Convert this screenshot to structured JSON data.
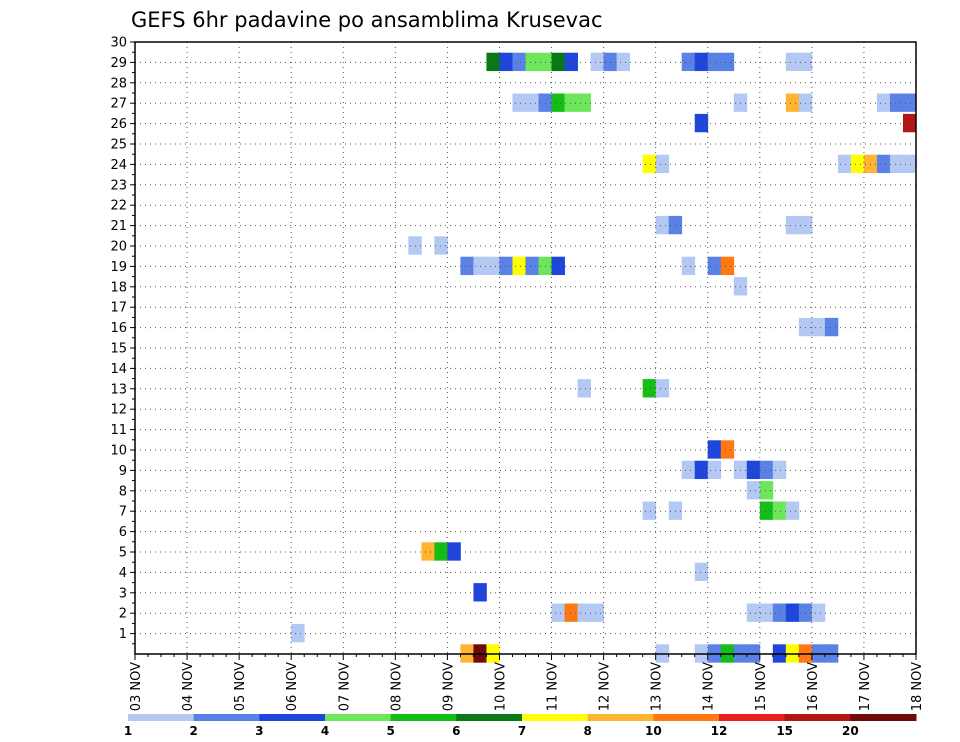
{
  "chart_data": {
    "type": "heatmap",
    "title": "GEFS 6hr padavine po ansamblima Krusevac",
    "x_tick_labels": [
      "03 NOV",
      "04 NOV",
      "05 NOV",
      "06 NOV",
      "07 NOV",
      "08 NOV",
      "09 NOV",
      "10 NOV",
      "11 NOV",
      "12 NOV",
      "13 NOV",
      "14 NOV",
      "15 NOV",
      "16 NOV",
      "17 NOV",
      "18 NOV"
    ],
    "y_tick_labels": [
      "1",
      "2",
      "3",
      "4",
      "5",
      "6",
      "7",
      "8",
      "9",
      "10",
      "11",
      "12",
      "13",
      "14",
      "15",
      "16",
      "17",
      "18",
      "19",
      "20",
      "21",
      "22",
      "23",
      "24",
      "25",
      "26",
      "27",
      "28",
      "29",
      "30"
    ],
    "xlim_days": [
      0,
      15
    ],
    "ylim": [
      0,
      30
    ],
    "grid": true,
    "legend": {
      "position": "bottom",
      "labels": [
        "1",
        "2",
        "3",
        "4",
        "5",
        "6",
        "7",
        "8",
        "10",
        "12",
        "15",
        "20"
      ],
      "colors": [
        "#b4c8f4",
        "#5a82e6",
        "#1e46dc",
        "#6ee65a",
        "#14be14",
        "#0a7814",
        "#ffff00",
        "#ffb432",
        "#ff7814",
        "#e61e1e",
        "#b41414",
        "#6e0a0a"
      ]
    },
    "cells_note": "each cell: [day_offset_from_03_NOV, member, color_level_index]",
    "cells": [
      [
        6.75,
        29,
        5
      ],
      [
        7.0,
        29,
        2
      ],
      [
        7.25,
        29,
        1
      ],
      [
        7.5,
        29,
        3
      ],
      [
        7.75,
        29,
        3
      ],
      [
        8.0,
        29,
        5
      ],
      [
        8.25,
        29,
        2
      ],
      [
        8.75,
        29,
        0
      ],
      [
        9.0,
        29,
        1
      ],
      [
        9.25,
        29,
        0
      ],
      [
        10.5,
        29,
        1
      ],
      [
        10.75,
        29,
        2
      ],
      [
        11.0,
        29,
        1
      ],
      [
        11.25,
        29,
        1
      ],
      [
        12.5,
        29,
        0
      ],
      [
        12.75,
        29,
        0
      ],
      [
        7.25,
        27,
        0
      ],
      [
        7.5,
        27,
        0
      ],
      [
        7.75,
        27,
        1
      ],
      [
        8.0,
        27,
        4
      ],
      [
        8.25,
        27,
        3
      ],
      [
        8.5,
        27,
        3
      ],
      [
        11.5,
        27,
        0
      ],
      [
        12.5,
        27,
        7
      ],
      [
        12.75,
        27,
        0
      ],
      [
        14.25,
        27,
        0
      ],
      [
        14.5,
        27,
        1
      ],
      [
        14.75,
        27,
        1
      ],
      [
        10.75,
        26,
        2
      ],
      [
        14.75,
        26,
        10
      ],
      [
        9.75,
        24,
        6
      ],
      [
        10.0,
        24,
        0
      ],
      [
        13.5,
        24,
        0
      ],
      [
        13.75,
        24,
        6
      ],
      [
        14.0,
        24,
        7
      ],
      [
        14.25,
        24,
        1
      ],
      [
        14.5,
        24,
        0
      ],
      [
        14.75,
        24,
        0
      ],
      [
        10.0,
        21,
        0
      ],
      [
        10.25,
        21,
        1
      ],
      [
        12.5,
        21,
        0
      ],
      [
        12.75,
        21,
        0
      ],
      [
        5.25,
        20,
        0
      ],
      [
        5.75,
        20,
        0
      ],
      [
        6.25,
        19,
        1
      ],
      [
        6.5,
        19,
        0
      ],
      [
        6.75,
        19,
        0
      ],
      [
        7.0,
        19,
        1
      ],
      [
        7.25,
        19,
        6
      ],
      [
        7.5,
        19,
        1
      ],
      [
        7.75,
        19,
        3
      ],
      [
        8.0,
        19,
        2
      ],
      [
        10.5,
        19,
        0
      ],
      [
        11.0,
        19,
        1
      ],
      [
        11.25,
        19,
        8
      ],
      [
        11.5,
        18,
        0
      ],
      [
        12.75,
        16,
        0
      ],
      [
        13.0,
        16,
        0
      ],
      [
        13.25,
        16,
        1
      ],
      [
        8.5,
        13,
        0
      ],
      [
        9.75,
        13,
        4
      ],
      [
        10.0,
        13,
        0
      ],
      [
        11.0,
        10,
        2
      ],
      [
        11.25,
        10,
        8
      ],
      [
        10.5,
        9,
        0
      ],
      [
        10.75,
        9,
        2
      ],
      [
        11.0,
        9,
        0
      ],
      [
        11.5,
        9,
        0
      ],
      [
        11.75,
        9,
        2
      ],
      [
        12.0,
        9,
        1
      ],
      [
        12.25,
        9,
        0
      ],
      [
        11.75,
        8,
        0
      ],
      [
        12.0,
        8,
        3
      ],
      [
        9.75,
        7,
        0
      ],
      [
        10.25,
        7,
        0
      ],
      [
        12.0,
        7,
        4
      ],
      [
        12.25,
        7,
        3
      ],
      [
        12.5,
        7,
        0
      ],
      [
        5.5,
        5,
        7
      ],
      [
        5.75,
        5,
        4
      ],
      [
        6.0,
        5,
        2
      ],
      [
        10.75,
        4,
        0
      ],
      [
        6.5,
        3,
        2
      ],
      [
        8.0,
        2,
        0
      ],
      [
        8.25,
        2,
        8
      ],
      [
        8.5,
        2,
        0
      ],
      [
        8.75,
        2,
        0
      ],
      [
        11.75,
        2,
        0
      ],
      [
        12.0,
        2,
        0
      ],
      [
        12.25,
        2,
        1
      ],
      [
        12.5,
        2,
        2
      ],
      [
        12.75,
        2,
        1
      ],
      [
        13.0,
        2,
        0
      ],
      [
        3.0,
        1,
        0
      ],
      [
        6.25,
        0,
        7
      ],
      [
        6.5,
        0,
        11
      ],
      [
        6.75,
        0,
        6
      ],
      [
        10.0,
        0,
        0
      ],
      [
        10.75,
        0,
        0
      ],
      [
        11.0,
        0,
        1
      ],
      [
        11.25,
        0,
        4
      ],
      [
        11.5,
        0,
        1
      ],
      [
        11.75,
        0,
        1
      ],
      [
        12.25,
        0,
        2
      ],
      [
        12.5,
        0,
        6
      ],
      [
        12.75,
        0,
        8
      ],
      [
        13.0,
        0,
        1
      ],
      [
        13.25,
        0,
        1
      ]
    ]
  }
}
